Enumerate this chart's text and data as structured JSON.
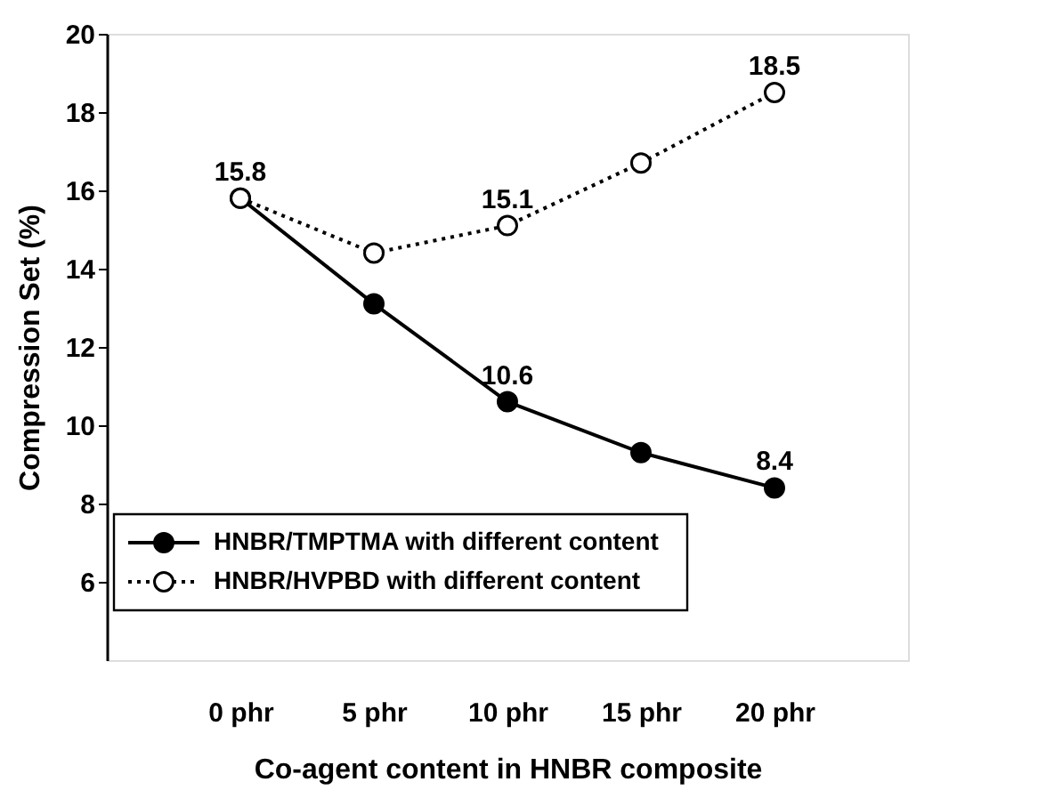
{
  "chart_data": {
    "type": "line",
    "xlabel": "Co-agent content in HNBR composite",
    "ylabel": "Compression Set (%)",
    "categories": [
      "0 phr",
      "5 phr",
      "10 phr",
      "15 phr",
      "20 phr"
    ],
    "series": [
      {
        "name": "HNBR/TMPTMA with different content",
        "color": "#000000",
        "line_style": "solid",
        "values": [
          15.8,
          13.1,
          10.6,
          9.3,
          8.4
        ],
        "value_labels": [
          null,
          null,
          "10.6",
          null,
          "8.4"
        ]
      },
      {
        "name": "HNBR/HVPBD with different content",
        "color": "#000000",
        "line_style": "dotted",
        "values": [
          15.8,
          14.4,
          15.1,
          16.7,
          18.5
        ],
        "value_labels": [
          "15.8",
          null,
          "15.1",
          null,
          "18.5"
        ]
      }
    ],
    "ylim": [
      4,
      20
    ],
    "yticks": [
      6,
      8,
      10,
      12,
      14,
      16,
      18,
      20
    ],
    "grid": false,
    "legend": "bottom left",
    "marker": "circle"
  }
}
